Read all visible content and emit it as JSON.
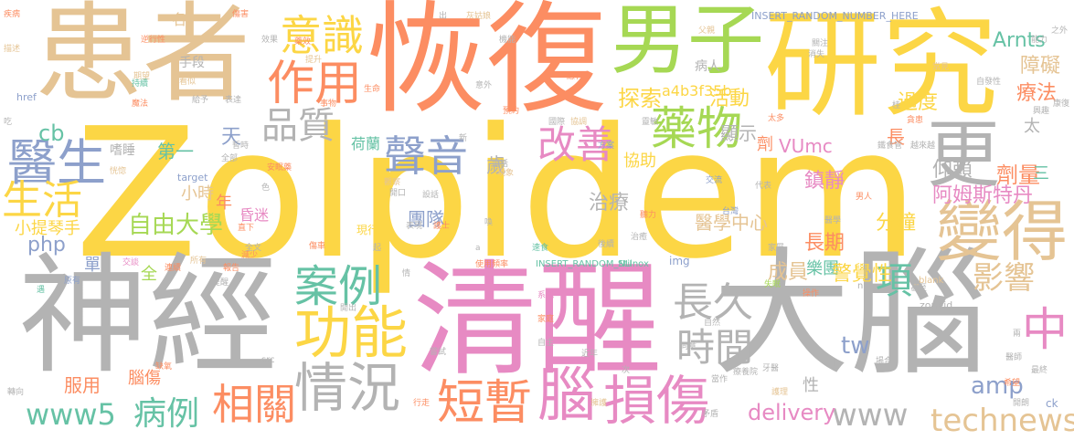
{
  "colors": {
    "background": "#ffffff",
    "yellow": "#fcd645",
    "gray": "#b3b3b3",
    "pink": "#e78ac3",
    "tan": "#e5c494",
    "orange": "#fc8d62",
    "green": "#a6d854",
    "blue": "#8da0cb",
    "teal": "#66c2a5"
  },
  "words": [
    {
      "text": "Zolpidem",
      "color": "yellow"
    },
    {
      "text": "患者",
      "color": "tan"
    },
    {
      "text": "恢復",
      "color": "orange"
    },
    {
      "text": "研究",
      "color": "yellow"
    },
    {
      "text": "男子",
      "color": "green"
    },
    {
      "text": "神經",
      "color": "gray"
    },
    {
      "text": "清醒",
      "color": "pink"
    },
    {
      "text": "大腦",
      "color": "gray"
    },
    {
      "text": "醫生",
      "color": "blue"
    },
    {
      "text": "生活",
      "color": "yellow"
    },
    {
      "text": "意識",
      "color": "yellow"
    },
    {
      "text": "作用",
      "color": "orange"
    },
    {
      "text": "聲音",
      "color": "blue"
    },
    {
      "text": "品質",
      "color": "gray"
    },
    {
      "text": "藥物",
      "color": "green"
    },
    {
      "text": "更",
      "color": "gray"
    },
    {
      "text": "變得",
      "color": "tan"
    },
    {
      "text": "改善",
      "color": "pink"
    },
    {
      "text": "案例",
      "color": "teal"
    },
    {
      "text": "功能",
      "color": "yellow"
    },
    {
      "text": "長久",
      "color": "gray"
    },
    {
      "text": "項",
      "color": "teal"
    },
    {
      "text": "時間",
      "color": "gray"
    },
    {
      "text": "中",
      "color": "pink"
    },
    {
      "text": "影響",
      "color": "tan"
    },
    {
      "text": "情況",
      "color": "gray"
    },
    {
      "text": "相關",
      "color": "orange"
    },
    {
      "text": "短暫",
      "color": "orange"
    },
    {
      "text": "腦",
      "color": "pink"
    },
    {
      "text": "損傷",
      "color": "pink"
    },
    {
      "text": "www5",
      "color": "teal"
    },
    {
      "text": "病例",
      "color": "teal"
    },
    {
      "text": "technews",
      "color": "tan"
    },
    {
      "text": "www",
      "color": "gray"
    },
    {
      "text": "delivery",
      "color": "pink"
    },
    {
      "text": "tw",
      "color": "blue"
    },
    {
      "text": "amp",
      "color": "blue"
    },
    {
      "text": "php",
      "color": "blue"
    },
    {
      "text": "cb",
      "color": "teal"
    },
    {
      "text": "自由大學",
      "color": "green"
    },
    {
      "text": "阿姆斯特丹",
      "color": "pink"
    },
    {
      "text": "Arnts",
      "color": "teal"
    },
    {
      "text": "障礙",
      "color": "tan"
    },
    {
      "text": "療法",
      "color": "orange"
    },
    {
      "text": "過度",
      "color": "yellow"
    },
    {
      "text": "劑量",
      "color": "orange"
    },
    {
      "text": "仰賴",
      "color": "gray"
    },
    {
      "text": "鎮靜",
      "color": "pink"
    },
    {
      "text": "分鐘",
      "color": "yellow"
    },
    {
      "text": "長期",
      "color": "orange"
    },
    {
      "text": "樂團",
      "color": "teal"
    },
    {
      "text": "警覺性",
      "color": "yellow"
    },
    {
      "text": "成員",
      "color": "tan"
    },
    {
      "text": "醫學中心",
      "color": "tan"
    },
    {
      "text": "VUmc",
      "color": "pink"
    },
    {
      "text": "顯示",
      "color": "gray"
    },
    {
      "text": "活動",
      "color": "yellow"
    },
    {
      "text": "探索",
      "color": "yellow"
    },
    {
      "text": "a4b3f35b",
      "color": "yellow"
    },
    {
      "text": "治療",
      "color": "gray"
    },
    {
      "text": "團隊",
      "color": "blue"
    },
    {
      "text": "協助",
      "color": "yellow"
    },
    {
      "text": "歲",
      "color": "gray"
    },
    {
      "text": "第一",
      "color": "teal"
    },
    {
      "text": "天",
      "color": "blue"
    },
    {
      "text": "小時",
      "color": "tan"
    },
    {
      "text": "年",
      "color": "orange"
    },
    {
      "text": "昏迷",
      "color": "pink"
    },
    {
      "text": "小提琴手",
      "color": "yellow"
    },
    {
      "text": "服用",
      "color": "orange"
    },
    {
      "text": "腦傷",
      "color": "orange"
    },
    {
      "text": "單",
      "color": "blue"
    },
    {
      "text": "全",
      "color": "green"
    },
    {
      "text": "長",
      "color": "orange"
    },
    {
      "text": "劑",
      "color": "orange"
    },
    {
      "text": "性",
      "color": "gray"
    },
    {
      "text": "三",
      "color": "teal"
    },
    {
      "text": "太",
      "color": "gray"
    },
    {
      "text": "病人",
      "color": "gray"
    },
    {
      "text": "手段",
      "color": "gray"
    },
    {
      "text": "名",
      "color": "tan"
    },
    {
      "text": "嗜睡",
      "color": "gray"
    },
    {
      "text": "現行",
      "color": "yellow"
    },
    {
      "text": "荷蘭",
      "color": "teal"
    },
    {
      "text": "INSERT_RANDOM_NUMBER_HERE",
      "color": "blue"
    },
    {
      "text": "INSERT_RANDOM_NU",
      "color": "teal"
    },
    {
      "text": "Stilnox",
      "color": "teal"
    },
    {
      "text": "target",
      "color": "blue"
    },
    {
      "text": "href",
      "color": "blue"
    },
    {
      "text": "src",
      "color": "gray"
    },
    {
      "text": "img",
      "color": "blue"
    },
    {
      "text": "zoneid",
      "color": "gray"
    },
    {
      "text": "_blank",
      "color": "tan"
    },
    {
      "text": "ck",
      "color": "blue"
    },
    {
      "text": "n",
      "color": "gray"
    },
    {
      "text": "a",
      "color": "gray"
    },
    {
      "text": "疾病",
      "color": "orange"
    },
    {
      "text": "描述",
      "color": "tan"
    },
    {
      "text": "逆行性",
      "color": "orange"
    },
    {
      "text": "期望",
      "color": "tan"
    },
    {
      "text": "看似",
      "color": "tan"
    },
    {
      "text": "魔法",
      "color": "orange"
    },
    {
      "text": "給予",
      "color": "gray"
    },
    {
      "text": "持續",
      "color": "teal"
    },
    {
      "text": "恍惚",
      "color": "tan"
    },
    {
      "text": "交談",
      "color": "pink"
    },
    {
      "text": "原有",
      "color": "blue"
    },
    {
      "text": "連續",
      "color": "orange"
    },
    {
      "text": "報告",
      "color": "orange"
    },
    {
      "text": "缺氧",
      "color": "orange"
    },
    {
      "text": "所有",
      "color": "tan"
    },
    {
      "text": "遇",
      "color": "teal"
    },
    {
      "text": "吃",
      "color": "gray"
    },
    {
      "text": "傷害",
      "color": "orange"
    },
    {
      "text": "效果",
      "color": "gray"
    },
    {
      "text": "提升",
      "color": "tan"
    },
    {
      "text": "表達",
      "color": "gray"
    },
    {
      "text": "事物",
      "color": "orange"
    },
    {
      "text": "暫時",
      "color": "gray"
    },
    {
      "text": "安眠藥",
      "color": "orange"
    },
    {
      "text": "生命",
      "color": "orange"
    },
    {
      "text": "出",
      "color": "gray"
    },
    {
      "text": "灰姑娘",
      "color": "tan"
    },
    {
      "text": "機能",
      "color": "gray"
    },
    {
      "text": "意外",
      "color": "gray"
    },
    {
      "text": "預約",
      "color": "orange"
    },
    {
      "text": "電話",
      "color": "gray"
    },
    {
      "text": "觀察",
      "color": "tan"
    },
    {
      "text": "設話",
      "color": "gray"
    },
    {
      "text": "開口",
      "color": "gray"
    },
    {
      "text": "現象",
      "color": "tan"
    },
    {
      "text": "表現",
      "color": "gray"
    },
    {
      "text": "護士",
      "color": "orange"
    },
    {
      "text": "喚",
      "color": "gray"
    },
    {
      "text": "速食",
      "color": "teal"
    },
    {
      "text": "使用頻率",
      "color": "orange"
    },
    {
      "text": "系統",
      "color": "pink"
    },
    {
      "text": "開出",
      "color": "gray"
    },
    {
      "text": "家庭",
      "color": "orange"
    },
    {
      "text": "自主",
      "color": "gray"
    },
    {
      "text": "嘗試",
      "color": "gray"
    },
    {
      "text": "近年",
      "color": "gray"
    },
    {
      "text": "擁護",
      "color": "tan"
    },
    {
      "text": "行走",
      "color": "orange"
    },
    {
      "text": "協調",
      "color": "tan"
    },
    {
      "text": "父親",
      "color": "tan"
    },
    {
      "text": "關注",
      "color": "gray"
    },
    {
      "text": "消失",
      "color": "gray"
    },
    {
      "text": "常見",
      "color": "tan"
    },
    {
      "text": "自發性",
      "color": "gray"
    },
    {
      "text": "能力",
      "color": "gray"
    },
    {
      "text": "之外",
      "color": "gray"
    },
    {
      "text": "興趣",
      "color": "gray"
    },
    {
      "text": "康復",
      "color": "gray"
    },
    {
      "text": "貪患",
      "color": "orange"
    },
    {
      "text": "越來越",
      "color": "gray"
    },
    {
      "text": "鐵食管",
      "color": "gray"
    },
    {
      "text": "國際",
      "color": "gray"
    },
    {
      "text": "方案",
      "color": "blue"
    },
    {
      "text": "靈敏",
      "color": "gray"
    },
    {
      "text": "太多",
      "color": "orange"
    },
    {
      "text": "交流",
      "color": "blue"
    },
    {
      "text": "代表",
      "color": "gray"
    },
    {
      "text": "男人",
      "color": "orange"
    },
    {
      "text": "醫學",
      "color": "gray"
    },
    {
      "text": "台灣",
      "color": "blue"
    },
    {
      "text": "聽力",
      "color": "orange"
    },
    {
      "text": "後續",
      "color": "gray"
    },
    {
      "text": "治癒",
      "color": "gray"
    },
    {
      "text": "家屬",
      "color": "gray"
    },
    {
      "text": "失眠",
      "color": "green"
    },
    {
      "text": "操作",
      "color": "orange"
    },
    {
      "text": "同意",
      "color": "gray"
    },
    {
      "text": "自然",
      "color": "gray"
    },
    {
      "text": "牙醫",
      "color": "gray"
    },
    {
      "text": "當作",
      "color": "gray"
    },
    {
      "text": "療養院",
      "color": "gray"
    },
    {
      "text": "醫師",
      "color": "gray"
    },
    {
      "text": "最終",
      "color": "gray"
    },
    {
      "text": "場合",
      "color": "gray"
    },
    {
      "text": "希望",
      "color": "orange"
    },
    {
      "text": "護理",
      "color": "tan"
    },
    {
      "text": "矛盾",
      "color": "gray"
    },
    {
      "text": "開朗",
      "color": "gray"
    },
    {
      "text": "兩",
      "color": "gray"
    },
    {
      "text": "次",
      "color": "gray"
    },
    {
      "text": "日",
      "color": "gray"
    },
    {
      "text": "桂",
      "color": "gray"
    },
    {
      "text": "全部",
      "color": "gray"
    },
    {
      "text": "色",
      "color": "gray"
    },
    {
      "text": "新",
      "color": "gray"
    },
    {
      "text": "情",
      "color": "gray"
    },
    {
      "text": "應有",
      "color": "orange"
    },
    {
      "text": "轉向",
      "color": "gray"
    },
    {
      "text": "減少",
      "color": "orange"
    },
    {
      "text": "提醒",
      "color": "gray"
    },
    {
      "text": "起",
      "color": "gray"
    },
    {
      "text": "藥效",
      "color": "orange"
    },
    {
      "text": "傷車",
      "color": "orange"
    },
    {
      "text": "直下",
      "color": "orange"
    },
    {
      "text": "全文",
      "color": "gray"
    },
    {
      "text": "甚至",
      "color": "gray"
    }
  ]
}
